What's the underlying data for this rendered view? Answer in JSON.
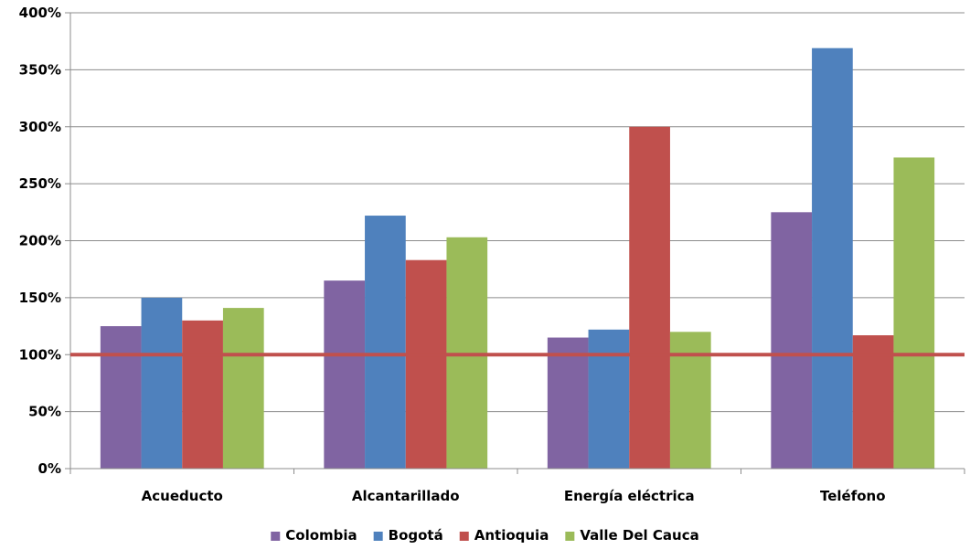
{
  "chart_data": {
    "type": "bar",
    "title": "",
    "xlabel": "",
    "ylabel": "",
    "categories": [
      "Acueducto",
      "Alcantarillado",
      "Energía eléctrica",
      "Teléfono"
    ],
    "series": [
      {
        "name": "Colombia",
        "color": "#8064A2",
        "values": [
          125,
          165,
          115,
          225
        ]
      },
      {
        "name": "Bogotá",
        "color": "#4F81BD",
        "values": [
          150,
          222,
          122,
          369
        ]
      },
      {
        "name": "Antioquia",
        "color": "#C0504D",
        "values": [
          130,
          183,
          300,
          117
        ]
      },
      {
        "name": "Valle Del Cauca",
        "color": "#9BBB59",
        "values": [
          141,
          203,
          120,
          273
        ]
      }
    ],
    "ylim": [
      0,
      400
    ],
    "yticks": [
      0,
      50,
      100,
      150,
      200,
      250,
      300,
      350,
      400
    ],
    "ytick_labels": [
      "0%",
      "50%",
      "100%",
      "150%",
      "200%",
      "250%",
      "300%",
      "350%",
      "400%"
    ],
    "reference_line": {
      "value": 100,
      "color": "#C0504D"
    },
    "grid": true,
    "legend_position": "bottom"
  }
}
